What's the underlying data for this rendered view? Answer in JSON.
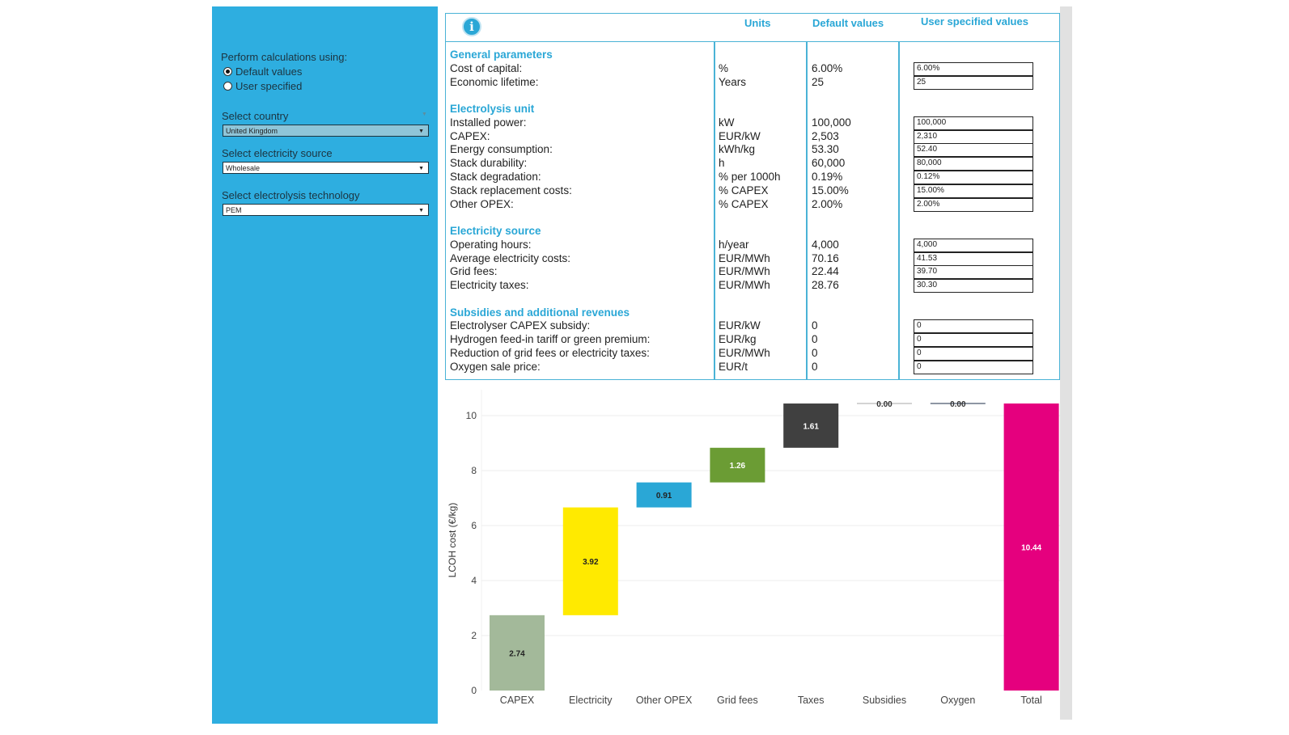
{
  "sidebar": {
    "calc_label": "Perform calculations using:",
    "radio_options": [
      {
        "label": "Default values",
        "selected": true
      },
      {
        "label": "User specified",
        "selected": false
      }
    ],
    "country_label": "Select country",
    "country_value": "United Kingdom",
    "source_label": "Select electricity source",
    "source_value": "Wholesale",
    "tech_label": "Select electrolysis technology",
    "tech_value": "PEM"
  },
  "table": {
    "info_icon": "i",
    "headers": {
      "units": "Units",
      "default": "Default values",
      "user": "User specified values"
    },
    "sections": [
      {
        "title": "General parameters",
        "rows": [
          {
            "label": "Cost of capital:",
            "unit": "%",
            "default": "6.00%",
            "user": "6.00%"
          },
          {
            "label": "Economic lifetime:",
            "unit": "Years",
            "default": "25",
            "user": "25"
          }
        ]
      },
      {
        "title": "Electrolysis unit",
        "rows": [
          {
            "label": "Installed power:",
            "unit": "kW",
            "default": "100,000",
            "user": "100,000"
          },
          {
            "label": "CAPEX:",
            "unit": "EUR/kW",
            "default": "2,503",
            "user": "2,310"
          },
          {
            "label": "Energy consumption:",
            "unit": "kWh/kg",
            "default": "53.30",
            "user": "52.40"
          },
          {
            "label": "Stack durability:",
            "unit": "h",
            "default": "60,000",
            "user": "80,000"
          },
          {
            "label": "Stack degradation:",
            "unit": "% per 1000h",
            "default": "0.19%",
            "user": "0.12%"
          },
          {
            "label": "Stack replacement costs:",
            "unit": "% CAPEX",
            "default": "15.00%",
            "user": "15.00%"
          },
          {
            "label": "Other OPEX:",
            "unit": "% CAPEX",
            "default": "2.00%",
            "user": "2.00%"
          }
        ]
      },
      {
        "title": "Electricity source",
        "rows": [
          {
            "label": "Operating hours:",
            "unit": "h/year",
            "default": "4,000",
            "user": "4,000"
          },
          {
            "label": "Average electricity costs:",
            "unit": "EUR/MWh",
            "default": "70.16",
            "user": "41.53"
          },
          {
            "label": "Grid fees:",
            "unit": "EUR/MWh",
            "default": "22.44",
            "user": "39.70"
          },
          {
            "label": "Electricity taxes:",
            "unit": "EUR/MWh",
            "default": "28.76",
            "user": "30.30"
          }
        ]
      },
      {
        "title": "Subsidies and additional revenues",
        "rows": [
          {
            "label": "Electrolyser CAPEX subsidy:",
            "unit": "EUR/kW",
            "default": "0",
            "user": "0"
          },
          {
            "label": "Hydrogen feed-in tariff or green premium:",
            "unit": "EUR/kg",
            "default": "0",
            "user": "0"
          },
          {
            "label": "Reduction of grid fees or electricity taxes:",
            "unit": "EUR/MWh",
            "default": "0",
            "user": "0"
          },
          {
            "label": "Oxygen sale price:",
            "unit": "EUR/t",
            "default": "0",
            "user": "0"
          }
        ]
      }
    ]
  },
  "chart_data": {
    "type": "bar",
    "subtype": "waterfall",
    "ylabel": "LCOH cost (€/kg)",
    "xlabel": "",
    "ylim": [
      0,
      10.5
    ],
    "yticks": [
      0,
      2,
      4,
      6,
      8,
      10
    ],
    "grid": true,
    "categories": [
      "CAPEX",
      "Electricity",
      "Other OPEX",
      "Grid fees",
      "Taxes",
      "Subsidies",
      "Oxygen",
      "Total"
    ],
    "values": [
      2.74,
      3.92,
      0.91,
      1.26,
      1.61,
      0.0,
      0.0,
      10.44
    ],
    "labels": [
      "2.74",
      "3.92",
      "0.91",
      "1.26",
      "1.61",
      "0.00",
      "0.00",
      "10.44"
    ],
    "is_total": [
      false,
      false,
      false,
      false,
      false,
      false,
      false,
      true
    ],
    "colors": [
      "#a3b99a",
      "#ffea00",
      "#2aa7d6",
      "#6b9c34",
      "#404040",
      "#aaaaaa",
      "#1c2e4a",
      "#e5007e"
    ],
    "label_colors": [
      "#222222",
      "#222222",
      "#222222",
      "#ffffff",
      "#ffffff",
      "#333333",
      "#333333",
      "#ffffff"
    ]
  }
}
